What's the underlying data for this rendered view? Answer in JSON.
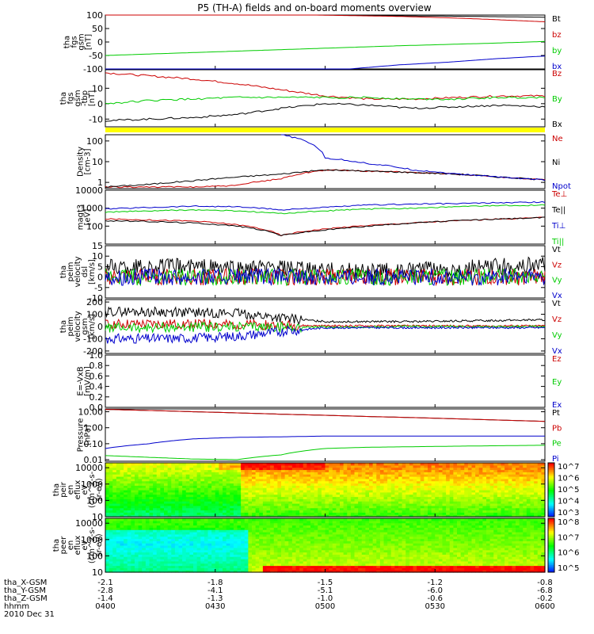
{
  "title": "P5 (TH-A) fields and on-board moments overview",
  "date_label": "2010 Dec 31",
  "footer": {
    "rows": [
      {
        "label": "tha_X-GSM",
        "values": [
          "-2.1",
          "-1.8",
          "-1.5",
          "-1.2",
          "-0.8"
        ]
      },
      {
        "label": "tha_Y-GSM",
        "values": [
          "-2.8",
          "-4.1",
          "-5.1",
          "-6.0",
          "-6.8"
        ]
      },
      {
        "label": "tha_Z-GSM",
        "values": [
          "-1.4",
          "-1.3",
          "-1.0",
          "-0.6",
          "-0.2"
        ]
      },
      {
        "label": "hhmm",
        "values": [
          "0400",
          "0430",
          "0500",
          "0530",
          "0600"
        ]
      }
    ]
  },
  "colors": {
    "black": "#000000",
    "red": "#cc0000",
    "green": "#00cc00",
    "blue": "#0000cc",
    "yellow": "#ffff00"
  },
  "chart_data": [
    {
      "type": "line",
      "id": "fgs_gse",
      "ylabel": [
        "tha",
        "fgs",
        "gsm",
        "[nT]"
      ],
      "ylim": [
        -100,
        100
      ],
      "ticks": [
        "100",
        "50",
        "0",
        "-50",
        "-100"
      ],
      "series": [
        {
          "name": "Bt",
          "color": "black",
          "values": [
            105,
            104,
            103,
            102,
            101,
            99,
            97,
            96,
            94,
            92
          ]
        },
        {
          "name": "bz",
          "color": "red",
          "values": [
            105,
            104,
            103,
            102,
            101,
            98,
            95,
            90,
            83,
            75
          ]
        },
        {
          "name": "by",
          "color": "green",
          "values": [
            -50,
            -44,
            -38,
            -32,
            -26,
            -20,
            -14,
            -9,
            -4,
            2
          ]
        },
        {
          "name": "bx",
          "color": "blue",
          "values": [
            -105,
            -105,
            -105,
            -105,
            -105,
            -100,
            -85,
            -75,
            -62,
            -52
          ]
        }
      ]
    },
    {
      "type": "line",
      "id": "fgs_dsl",
      "ylabel": [
        "tha",
        "fgs",
        "gsm",
        "-tbp",
        "[nT]"
      ],
      "ylim": [
        -15,
        22
      ],
      "ticks": [
        "10",
        "0",
        "-10"
      ],
      "series": [
        {
          "name": "Bz",
          "color": "red",
          "values": [
            20,
            18,
            16,
            13,
            9,
            5,
            3,
            3,
            4,
            5,
            5
          ]
        },
        {
          "name": "By",
          "color": "green",
          "values": [
            0,
            2,
            3,
            4,
            4,
            4,
            4,
            3,
            3,
            4,
            4
          ]
        },
        {
          "name": "Bx",
          "color": "black",
          "values": [
            -11,
            -10,
            -9,
            -7,
            -3,
            0,
            -1,
            -3,
            -2,
            -1,
            -2
          ]
        }
      ]
    },
    {
      "type": "bar",
      "id": "flag_bar",
      "color": "yellow"
    },
    {
      "type": "line",
      "id": "density",
      "ylabel": [
        "Density",
        "[cm-3]"
      ],
      "ylim": [
        0.5,
        200
      ],
      "scale": "log",
      "ticks": [
        "100",
        "10",
        "1"
      ],
      "series": [
        {
          "name": "Ne",
          "color": "red",
          "values": [
            0.6,
            0.6,
            0.6,
            0.7,
            1.5,
            4,
            3.5,
            3,
            2.5,
            1.8,
            1.3
          ]
        },
        {
          "name": "Ni",
          "color": "black",
          "values": [
            0.6,
            0.8,
            1.2,
            1.8,
            2.5,
            4,
            3.5,
            3,
            2.5,
            1.8,
            1.3
          ]
        },
        {
          "name": "Npot",
          "color": "blue",
          "values": [
            null,
            null,
            null,
            null,
            200,
            15,
            8,
            4,
            2.5,
            1.8,
            1.3
          ]
        }
      ]
    },
    {
      "type": "line",
      "id": "temps",
      "ylabel": [
        "magt3",
        "[eV]"
      ],
      "ylim": [
        10,
        10000
      ],
      "scale": "log",
      "ticks": [
        "10000",
        "1000",
        "100"
      ],
      "series": [
        {
          "name": "Te⊥",
          "color": "red",
          "values": [
            250,
            220,
            190,
            120,
            30,
            70,
            110,
            150,
            200,
            250,
            300
          ]
        },
        {
          "name": "Te||",
          "color": "black",
          "values": [
            200,
            180,
            150,
            100,
            30,
            60,
            100,
            150,
            200,
            250,
            300
          ]
        },
        {
          "name": "Ti⊥",
          "color": "blue",
          "values": [
            900,
            1100,
            1300,
            1200,
            800,
            1100,
            1500,
            1700,
            1800,
            2000,
            2200
          ]
        },
        {
          "name": "Ti||",
          "color": "green",
          "values": [
            600,
            700,
            800,
            700,
            500,
            700,
            900,
            1000,
            1200,
            1400,
            1500
          ]
        }
      ]
    },
    {
      "type": "line",
      "id": "peim_vel_small",
      "ylabel": [
        "tha",
        "peim",
        "velocity",
        "dsl",
        "[km/s]"
      ],
      "ylim": [
        -10,
        15
      ],
      "ticks": [
        "15",
        "10",
        "5",
        "0",
        "-5",
        "-10"
      ],
      "series": [
        {
          "name": "Vt",
          "color": "black",
          "values": [
            5,
            5,
            5,
            4,
            4,
            3,
            3,
            3,
            4,
            5,
            6
          ]
        },
        {
          "name": "Vz",
          "color": "red",
          "values": [
            0,
            0,
            0,
            0,
            0,
            0,
            0,
            0,
            0,
            0,
            0
          ]
        },
        {
          "name": "Vy",
          "color": "green",
          "values": [
            0,
            0,
            0,
            0,
            0,
            0,
            0,
            0,
            0,
            0,
            0
          ]
        },
        {
          "name": "Vx",
          "color": "blue",
          "values": [
            0,
            0,
            0,
            0,
            0,
            0,
            0,
            0,
            0,
            0,
            0
          ]
        }
      ]
    },
    {
      "type": "line",
      "id": "peim_vel_gsm",
      "ylabel": [
        "tha",
        "peim",
        "velocity",
        "gsm",
        "[km/s]"
      ],
      "ylim": [
        -220,
        220
      ],
      "ticks": [
        "200",
        "100",
        "0",
        "-100",
        "-200"
      ],
      "series": [
        {
          "name": "Vt",
          "color": "black",
          "values": [
            120,
            120,
            115,
            110,
            70,
            40,
            40,
            40,
            45,
            50,
            55
          ]
        },
        {
          "name": "Vz",
          "color": "red",
          "values": [
            20,
            20,
            20,
            15,
            10,
            5,
            5,
            5,
            5,
            5,
            5
          ]
        },
        {
          "name": "Vy",
          "color": "green",
          "values": [
            -10,
            -10,
            -5,
            -5,
            -5,
            -5,
            -5,
            0,
            0,
            0,
            0
          ]
        },
        {
          "name": "Vx",
          "color": "blue",
          "values": [
            -100,
            -100,
            -95,
            -80,
            -40,
            -10,
            -10,
            -10,
            -10,
            -10,
            -10
          ]
        }
      ]
    },
    {
      "type": "line",
      "id": "efield",
      "ylabel": [
        "E=-VxB",
        "[mV/m]"
      ],
      "ylim": [
        0,
        1
      ],
      "ticks": [
        "1.0",
        "0.8",
        "0.6",
        "0.4",
        "0.2",
        "0.0"
      ],
      "series": [
        {
          "name": "Ez",
          "color": "red",
          "values": []
        },
        {
          "name": "Ey",
          "color": "green",
          "values": []
        },
        {
          "name": "Ex",
          "color": "blue",
          "values": []
        }
      ]
    },
    {
      "type": "line",
      "id": "pressure",
      "ylabel": [
        "Pressure",
        "[nPa]"
      ],
      "ylim": [
        0.008,
        15
      ],
      "scale": "log",
      "ticks": [
        "10.00",
        "1.00",
        "0.10",
        "0.01"
      ],
      "series": [
        {
          "name": "Pt",
          "color": "black",
          "values": [
            14,
            12,
            10,
            8.5,
            7,
            6,
            5,
            4.3,
            3.6,
            3.0,
            2.5
          ]
        },
        {
          "name": "Pb",
          "color": "red",
          "values": [
            14,
            12,
            10,
            8.5,
            7,
            6,
            5,
            4.3,
            3.6,
            3.0,
            2.5
          ]
        },
        {
          "name": "Pe",
          "color": "green",
          "values": [
            0.018,
            0.014,
            0.011,
            0.01,
            0.02,
            0.05,
            0.06,
            0.065,
            0.07,
            0.075,
            0.08
          ]
        },
        {
          "name": "Pi",
          "color": "blue",
          "values": [
            0.05,
            0.1,
            0.2,
            0.25,
            0.27,
            0.3,
            0.3,
            0.3,
            0.3,
            0.3,
            0.3
          ]
        }
      ]
    },
    {
      "type": "heatmap",
      "id": "peir_spec",
      "ylabel": [
        "tha",
        "peir",
        "en",
        "eflux",
        "eV",
        "(cm^2-s-",
        "sr-eV)"
      ],
      "ylim": [
        10,
        20000
      ],
      "scale": "log",
      "ticks": [
        "10000",
        "1000",
        "100",
        "10"
      ],
      "colorbar": {
        "labels": [
          "10^7",
          "10^6",
          "10^5",
          "10^4",
          "10^3"
        ]
      }
    },
    {
      "type": "heatmap",
      "id": "peer_spec",
      "ylabel": [
        "tha",
        "peer",
        "en",
        "eflux",
        "eV",
        "(cm^2-s-",
        "sr-eV)"
      ],
      "ylim": [
        10,
        20000
      ],
      "scale": "log",
      "ticks": [
        "10000",
        "1000",
        "100",
        "10"
      ],
      "colorbar": {
        "labels": [
          "10^8",
          "10^7",
          "10^6",
          "10^5"
        ]
      }
    }
  ]
}
